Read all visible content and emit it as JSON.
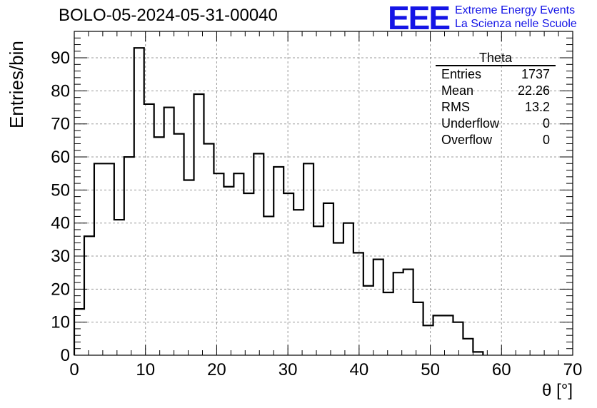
{
  "title": "BOLO-05-2024-05-31-00040",
  "logo": {
    "mark": "EEE",
    "line1": "Extreme Energy Events",
    "line2": "La Scienza nelle Scuole",
    "color": "#1515e6"
  },
  "stats": {
    "title": "Theta",
    "rows": [
      {
        "label": "Entries",
        "value": "1737"
      },
      {
        "label": "Mean",
        "value": "22.26"
      },
      {
        "label": "RMS",
        "value": "13.2"
      },
      {
        "label": "Underflow",
        "value": "0"
      },
      {
        "label": "Overflow",
        "value": "0"
      }
    ]
  },
  "chart_data": {
    "type": "bar",
    "histogram": true,
    "bin_edges": [
      0,
      1.4,
      2.8,
      4.2,
      5.6,
      7.0,
      8.4,
      9.8,
      11.2,
      12.6,
      14.0,
      15.4,
      16.8,
      18.2,
      19.6,
      21.0,
      22.4,
      23.8,
      25.2,
      26.6,
      28.0,
      29.4,
      30.8,
      32.2,
      33.6,
      35.0,
      36.4,
      37.8,
      39.2,
      40.6,
      42.0,
      43.4,
      44.8,
      46.2,
      47.6,
      49.0,
      50.4,
      51.8,
      53.2,
      54.6,
      56.0,
      57.4
    ],
    "values": [
      14,
      36,
      58,
      58,
      41,
      60,
      93,
      76,
      66,
      75,
      67,
      53,
      79,
      64,
      55,
      51,
      55,
      49,
      61,
      42,
      57,
      49,
      44,
      58,
      39,
      46,
      34,
      40,
      31,
      21,
      29,
      19,
      25,
      26,
      16,
      9,
      12,
      12,
      10,
      5,
      1
    ],
    "xlabel": "θ [°]",
    "ylabel": "Entries/bin",
    "xlim": [
      0,
      70
    ],
    "ylim": [
      0,
      98
    ],
    "xticks": [
      0,
      10,
      20,
      30,
      40,
      50,
      60,
      70
    ],
    "yticks": [
      0,
      10,
      20,
      30,
      40,
      50,
      60,
      70,
      80,
      90
    ],
    "grid": true,
    "line_color": "#000000"
  }
}
